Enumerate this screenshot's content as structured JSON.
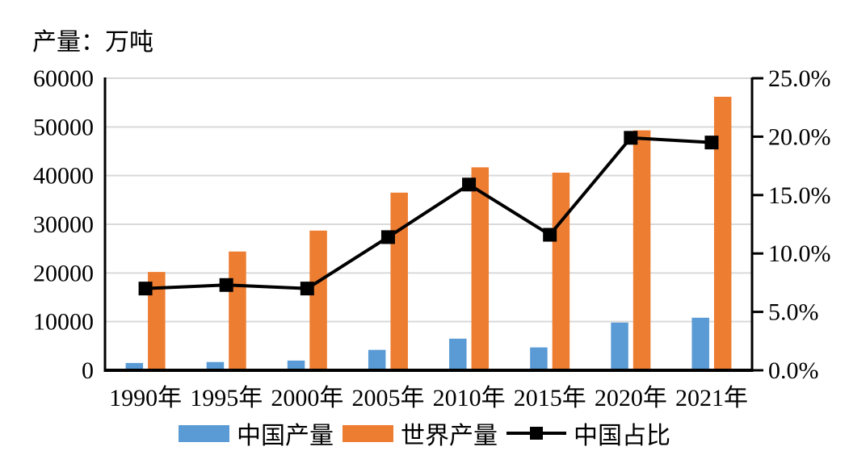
{
  "title": "产量：万吨",
  "chart_data": {
    "type": "bar+line combo",
    "title": "产量：万吨",
    "categories": [
      "1990年",
      "1995年",
      "2000年",
      "2005年",
      "2010年",
      "2015年",
      "2020年",
      "2021年"
    ],
    "series": [
      {
        "name": "中国产量",
        "type": "bar",
        "axis": "left",
        "color": "#5B9BD5",
        "values": [
          1500,
          1700,
          2000,
          4200,
          6500,
          4700,
          9800,
          10800
        ]
      },
      {
        "name": "世界产量",
        "type": "bar",
        "axis": "left",
        "color": "#ED7D31",
        "values": [
          20200,
          24400,
          28700,
          36500,
          41700,
          40600,
          49300,
          56200
        ]
      },
      {
        "name": "中国占比",
        "type": "line",
        "axis": "right",
        "color": "#000000",
        "marker": "square",
        "values_percent": [
          7.0,
          7.3,
          7.0,
          11.4,
          15.9,
          11.6,
          19.9,
          19.5
        ]
      }
    ],
    "left_axis": {
      "title": "产量：万吨",
      "min": 0,
      "max": 60000,
      "step": 10000,
      "tick_labels": [
        "0",
        "10000",
        "20000",
        "30000",
        "40000",
        "50000",
        "60000"
      ]
    },
    "right_axis": {
      "min": 0,
      "max": 25,
      "step": 5,
      "tick_labels": [
        "0.0%",
        "5.0%",
        "10.0%",
        "15.0%",
        "20.0%",
        "25.0%"
      ]
    },
    "grid": "horizontal",
    "legend_position": "bottom",
    "gridline_color": "#D9D9D9",
    "axis_color": "#000000",
    "background": "#FFFFFF"
  }
}
